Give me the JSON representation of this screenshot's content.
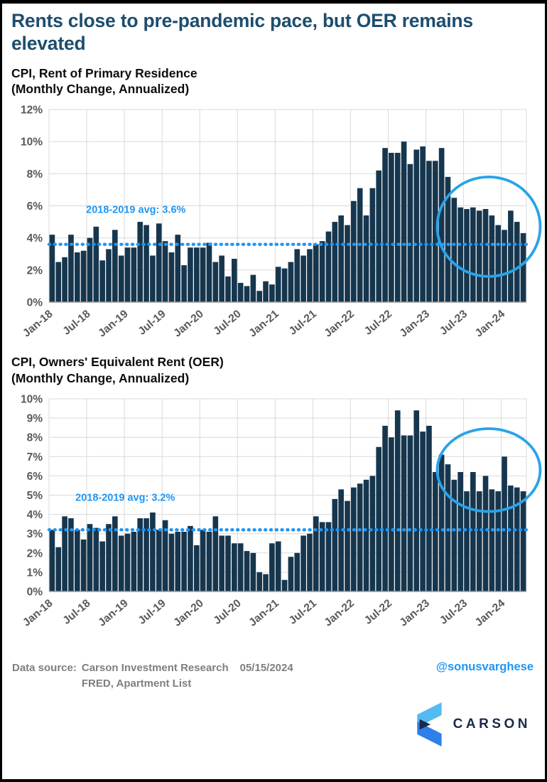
{
  "page": {
    "title_line1": "Rents close to pre-pandemic pace, but OER remains",
    "title_line2": "elevated"
  },
  "footer": {
    "source_label": "Data source:",
    "source_line1": "Carson Investment Research",
    "source_line2": "FRED, Apartment List",
    "date": "05/15/2024",
    "handle": "@sonusvarghese",
    "brand": "CARSON"
  },
  "colors": {
    "bar": "#16364e",
    "accent_blue": "#1e96f5",
    "circle_blue": "#29a3ea",
    "grid": "#d9d9d9",
    "baseline": "#9c9c9c",
    "axis_text": "#595959",
    "title_navy": "#1c4d6e",
    "footer_gray": "#7f7f7f",
    "logo_navy": "#1b2b4b",
    "logo_light_blue": "#54bbf2",
    "logo_mid_blue": "#2e7fe8"
  },
  "chart_data": [
    {
      "type": "bar",
      "title_line1": "CPI, Rent of Primary Residence",
      "title_line2": "(Monthly Change, Annualized)",
      "unit": "%",
      "ylim": [
        0,
        12
      ],
      "ystep": 2,
      "grid": true,
      "legend": "none",
      "x_start": "Jan-18",
      "x_tick_every": 6,
      "x_tick_labels": [
        "Jan-18",
        "Jul-18",
        "Jan-19",
        "Jul-19",
        "Jan-20",
        "Jul-20",
        "Jan-21",
        "Jul-21",
        "Jan-22",
        "Jul-22",
        "Jan-23",
        "Jul-23",
        "Jan-24"
      ],
      "values": [
        4.2,
        2.5,
        2.8,
        4.2,
        3.1,
        3.2,
        4.0,
        4.7,
        2.6,
        3.3,
        4.5,
        2.9,
        3.4,
        3.4,
        5.0,
        4.8,
        2.9,
        4.9,
        3.8,
        3.1,
        4.2,
        2.3,
        3.4,
        3.4,
        3.4,
        3.7,
        2.5,
        2.9,
        1.6,
        2.7,
        1.2,
        1.0,
        1.7,
        0.7,
        1.3,
        1.1,
        2.2,
        2.1,
        2.5,
        3.3,
        2.9,
        3.3,
        3.6,
        3.8,
        4.4,
        5.0,
        5.4,
        4.8,
        6.3,
        7.1,
        5.4,
        7.1,
        8.2,
        9.6,
        9.3,
        9.3,
        10.0,
        8.6,
        9.5,
        9.7,
        8.8,
        8.8,
        9.6,
        7.8,
        6.5,
        5.9,
        5.8,
        5.9,
        5.7,
        5.8,
        5.4,
        4.8,
        4.5,
        5.7,
        5.0,
        4.3
      ],
      "avg_line": {
        "label": "2018-2019 avg: 3.6%",
        "value": 3.6,
        "label_month": 5.9,
        "label_value": 5.55
      },
      "circle_annotation": {
        "center_month": 70,
        "center_value": 4.7,
        "rx_months": 8.2,
        "ry_value": 3.1
      }
    },
    {
      "type": "bar",
      "title_line1": "CPI, Owners' Equivalent Rent (OER)",
      "title_line2": "(Monthly Change, Annualized)",
      "unit": "%",
      "ylim": [
        0,
        10
      ],
      "ystep": 1,
      "grid": true,
      "legend": "none",
      "x_start": "Jan-18",
      "x_tick_every": 6,
      "x_tick_labels": [
        "Jan-18",
        "Jul-18",
        "Jan-19",
        "Jul-19",
        "Jan-20",
        "Jul-20",
        "Jan-21",
        "Jul-21",
        "Jan-22",
        "Jul-22",
        "Jan-23",
        "Jul-23",
        "Jan-24"
      ],
      "values": [
        3.2,
        2.3,
        3.9,
        3.8,
        3.2,
        2.7,
        3.5,
        3.3,
        2.6,
        3.5,
        3.9,
        2.9,
        3.0,
        3.1,
        3.8,
        3.8,
        4.1,
        3.2,
        3.7,
        3.0,
        3.1,
        3.1,
        3.4,
        2.4,
        3.2,
        3.1,
        3.9,
        2.9,
        2.9,
        2.5,
        2.5,
        2.1,
        2.0,
        1.0,
        0.9,
        2.5,
        2.6,
        0.6,
        1.8,
        2.0,
        2.9,
        3.0,
        3.9,
        3.6,
        3.6,
        4.8,
        5.3,
        4.7,
        5.4,
        5.6,
        5.8,
        6.0,
        7.5,
        8.6,
        8.0,
        9.4,
        8.1,
        8.1,
        9.4,
        8.3,
        8.6,
        6.2,
        7.1,
        6.6,
        5.8,
        6.2,
        5.2,
        6.2,
        5.2,
        6.0,
        5.3,
        5.2,
        7.0,
        5.5,
        5.4,
        5.2
      ],
      "avg_line": {
        "label": "2018-2019 avg: 3.2%",
        "value": 3.2,
        "label_month": 4.2,
        "label_value": 4.7
      },
      "circle_annotation": {
        "center_month": 70,
        "center_value": 6.3,
        "rx_months": 8.2,
        "ry_value": 2.15
      }
    }
  ]
}
